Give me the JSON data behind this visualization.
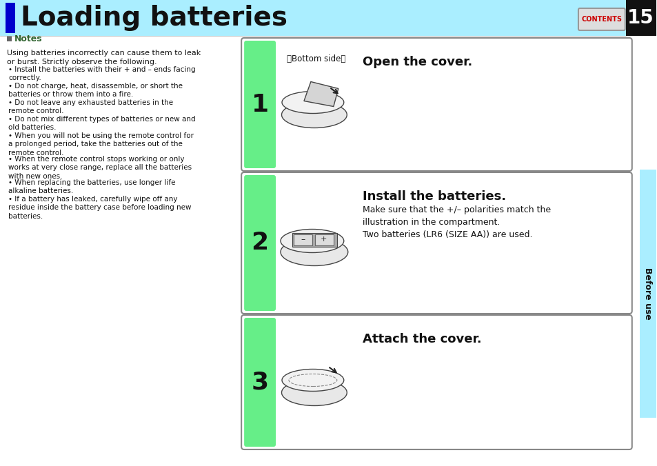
{
  "title": "Loading batteries",
  "title_bg_color": "#aaeeff",
  "title_blue_bar_color": "#0000cc",
  "title_fontsize": 28,
  "page_number": "15",
  "page_number_bg": "#111111",
  "contents_label": "CONTENTS",
  "contents_bg": "#cccccc",
  "contents_text_color": "#cc0000",
  "sidebar_label": "Before use",
  "sidebar_bg": "#aaeeff",
  "notes_label": "Notes",
  "notes_icon_color": "#336633",
  "notes_text_color": "#336633",
  "notes_body": "Using batteries incorrectly can cause them to leak\nor burst. Strictly observe the following.",
  "bullet_points": [
    "Install the batteries with their + and – ends facing\ncorrectly.",
    "Do not charge, heat, disassemble, or short the\nbatteries or throw them into a fire.",
    "Do not leave any exhausted batteries in the\nremote control.",
    "Do not mix different types of batteries or new and\nold batteries.",
    "When you will not be using the remote control for\na prolonged period, take the batteries out of the\nremote control.",
    "When the remote control stops working or only\nworks at very close range, replace all the batteries\nwith new ones.",
    "When replacing the batteries, use longer life\nalkaline batteries.",
    "If a battery has leaked, carefully wipe off any\nresidue inside the battery case before loading new\nbatteries."
  ],
  "step1_num": "1",
  "step1_title": "Open the cover.",
  "step1_sub": "》Bottom side〉",
  "step2_num": "2",
  "step2_title": "Install the batteries.",
  "step2_body": "Make sure that the +/– polarities match the\nillustration in the compartment.\nTwo batteries (LR6 (SIZE AA)) are used.",
  "step3_num": "3",
  "step3_title": "Attach the cover.",
  "step_num_bg": "#66ee88",
  "step_box_bg": "#ffffff",
  "step_box_border": "#888888",
  "bg_color": "#ffffff",
  "small_fontsize": 8,
  "body_fontsize": 9,
  "step_title_bold_fontsize": 13,
  "step_num_fontsize": 26
}
